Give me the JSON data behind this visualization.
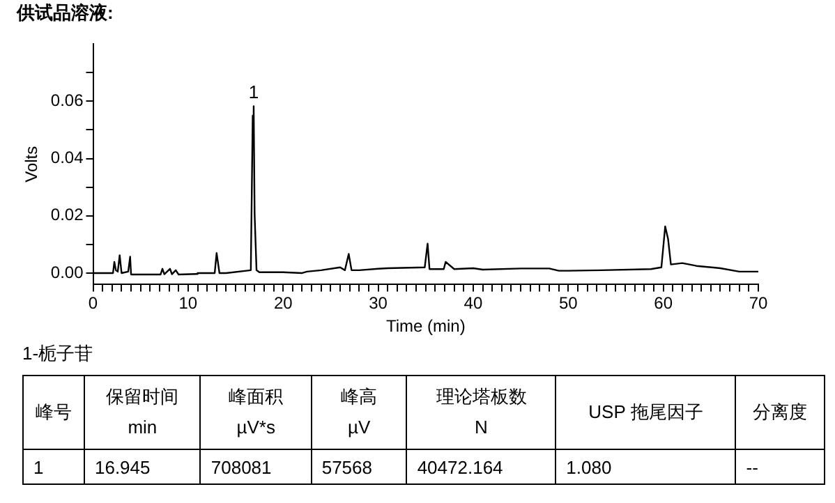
{
  "chart_data": [
    {
      "type": "line",
      "title": "供试品溶液:",
      "xlabel": "Time (min)",
      "ylabel": "Volts",
      "x": [
        0,
        2.1,
        2.24,
        2.4,
        2.6,
        2.8,
        3.0,
        3.7,
        3.9,
        4.0,
        5,
        7.1,
        7.3,
        7.5,
        8.1,
        8.3,
        8.7,
        9,
        10.9,
        11,
        12.8,
        13.0,
        13.3,
        14,
        16.6,
        16.8,
        16.9,
        17.0,
        17.2,
        17.5,
        20,
        22,
        22.5,
        24,
        26,
        26.5,
        26.9,
        27.2,
        28,
        30,
        31,
        34.9,
        35.2,
        35.4,
        36.9,
        37.1,
        38,
        40,
        41,
        45,
        48,
        49,
        50,
        53.5,
        58.7,
        59.8,
        60.2,
        60.5,
        60.8,
        62,
        63.5,
        66,
        68,
        70
      ],
      "series": [
        {
          "color": "#000000",
          "values": [
            0,
            0,
            0.0039,
            0.001,
            0.0005,
            0.0062,
            0.0,
            0.0005,
            0.0057,
            -0.0005,
            -0.0005,
            -0.0005,
            0.0015,
            -0.0004,
            0.0015,
            -0.0004,
            0.001,
            -0.0005,
            -0.0003,
            0.0,
            0.0,
            0.007,
            0.0,
            0.0,
            0.001,
            0.055,
            0.0583,
            0.0205,
            0.001,
            0.0003,
            0.0003,
            0.0,
            0.0005,
            0.001,
            0.002,
            0.001,
            0.0067,
            0.001,
            0.001,
            0.0015,
            0.0017,
            0.002,
            0.0103,
            0.0014,
            0.0014,
            0.0039,
            0.0014,
            0.0017,
            0.0012,
            0.0016,
            0.0016,
            0.0008,
            0.0008,
            0.001,
            0.0014,
            0.002,
            0.0163,
            0.012,
            0.003,
            0.0035,
            0.0025,
            0.0017,
            0.0005,
            0.0005
          ]
        }
      ],
      "xlim": [
        0,
        70
      ],
      "xticks": [
        0,
        {
          "value": 1,
          "label": null
        },
        {
          "value": 2,
          "label": null
        },
        {
          "value": 3,
          "label": null
        },
        {
          "value": 4,
          "label": null
        },
        {
          "value": 5,
          "label": null
        },
        {
          "value": 6,
          "label": null
        },
        {
          "value": 7,
          "label": null
        },
        {
          "value": 8,
          "label": null
        },
        {
          "value": 9,
          "label": null
        },
        10,
        {
          "value": 11,
          "label": null
        },
        {
          "value": 12,
          "label": null
        },
        {
          "value": 13,
          "label": null
        },
        {
          "value": 14,
          "label": null
        },
        {
          "value": 15,
          "label": null
        },
        {
          "value": 16,
          "label": null
        },
        {
          "value": 17,
          "label": null
        },
        {
          "value": 18,
          "label": null
        },
        {
          "value": 19,
          "label": null
        },
        20,
        {
          "value": 21,
          "label": null
        },
        {
          "value": 22,
          "label": null
        },
        {
          "value": 23,
          "label": null
        },
        {
          "value": 24,
          "label": null
        },
        {
          "value": 25,
          "label": null
        },
        {
          "value": 26,
          "label": null
        },
        {
          "value": 27,
          "label": null
        },
        {
          "value": 28,
          "label": null
        },
        {
          "value": 29,
          "label": null
        },
        30,
        {
          "value": 31,
          "label": null
        },
        {
          "value": 32,
          "label": null
        },
        {
          "value": 33,
          "label": null
        },
        {
          "value": 34,
          "label": null
        },
        {
          "value": 35,
          "label": null
        },
        {
          "value": 36,
          "label": null
        },
        {
          "value": 37,
          "label": null
        },
        {
          "value": 38,
          "label": null
        },
        {
          "value": 39,
          "label": null
        },
        40,
        {
          "value": 41,
          "label": null
        },
        {
          "value": 42,
          "label": null
        },
        {
          "value": 43,
          "label": null
        },
        {
          "value": 44,
          "label": null
        },
        {
          "value": 45,
          "label": null
        },
        {
          "value": 46,
          "label": null
        },
        {
          "value": 47,
          "label": null
        },
        {
          "value": 48,
          "label": null
        },
        {
          "value": 49,
          "label": null
        },
        50,
        {
          "value": 51,
          "label": null
        },
        {
          "value": 52,
          "label": null
        },
        {
          "value": 53,
          "label": null
        },
        {
          "value": 54,
          "label": null
        },
        {
          "value": 55,
          "label": null
        },
        {
          "value": 56,
          "label": null
        },
        {
          "value": 57,
          "label": null
        },
        {
          "value": 58,
          "label": null
        },
        {
          "value": 59,
          "label": null
        },
        60,
        {
          "value": 61,
          "label": null
        },
        {
          "value": 62,
          "label": null
        },
        {
          "value": 63,
          "label": null
        },
        {
          "value": 64,
          "label": null
        },
        {
          "value": 65,
          "label": null
        },
        {
          "value": 66,
          "label": null
        },
        {
          "value": 67,
          "label": null
        },
        {
          "value": 68,
          "label": null
        },
        {
          "value": 69,
          "label": null
        },
        70
      ],
      "ylim": [
        -0.004,
        0.08
      ],
      "yticks": [
        {
          "value": 0,
          "label": "0.00"
        },
        {
          "value": 0.01,
          "label": null
        },
        {
          "value": 0.02,
          "label": "0.02"
        },
        {
          "value": 0.03,
          "label": null
        },
        {
          "value": 0.04,
          "label": "0.04"
        },
        {
          "value": 0.05,
          "label": null
        },
        {
          "value": 0.06,
          "label": "0.06"
        },
        {
          "value": 0.07,
          "label": null
        }
      ],
      "annotations": [
        {
          "text": "1",
          "x": 16.9,
          "y": 0.0583
        }
      ],
      "grid": false,
      "legend": false,
      "marker": "none",
      "line_style": "solid"
    },
    {
      "type": "other",
      "title": "1-栀子苷",
      "categories": [
        "峰号",
        "保留时间\nmin",
        "峰面积\nµV*s",
        "峰高\nµV",
        "理论塔板数\nN",
        "USP 拖尾因子",
        "分离度"
      ],
      "cell_labels": [
        [
          "1",
          "16.945",
          "708081",
          "57568",
          "40472.164",
          "1.080",
          "--"
        ]
      ]
    }
  ]
}
